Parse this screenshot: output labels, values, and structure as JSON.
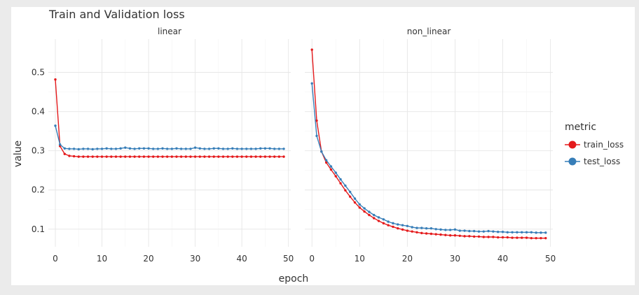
{
  "chart_data": {
    "type": "line",
    "title": "Train and Validation loss",
    "xlabel": "epoch",
    "ylabel": "value",
    "xlim": [
      -1.5,
      50.5
    ],
    "ylim": [
      0.055,
      0.585
    ],
    "x_ticks": [
      0,
      10,
      20,
      30,
      40,
      50
    ],
    "y_ticks": [
      0.1,
      0.2,
      0.3,
      0.4,
      0.5
    ],
    "grid": true,
    "legend": {
      "title": "metric",
      "placement": "right",
      "entries": [
        {
          "name": "train_loss",
          "color": "#e41a1c"
        },
        {
          "name": "test_loss",
          "color": "#377eb8"
        }
      ]
    },
    "facets": [
      {
        "label": "linear",
        "x": [
          0,
          1,
          2,
          3,
          4,
          5,
          6,
          7,
          8,
          9,
          10,
          11,
          12,
          13,
          14,
          15,
          16,
          17,
          18,
          19,
          20,
          21,
          22,
          23,
          24,
          25,
          26,
          27,
          28,
          29,
          30,
          31,
          32,
          33,
          34,
          35,
          36,
          37,
          38,
          39,
          40,
          41,
          42,
          43,
          44,
          45,
          46,
          47,
          48,
          49
        ],
        "series": [
          {
            "name": "train_loss",
            "values": [
              0.482,
              0.312,
              0.292,
              0.287,
              0.286,
              0.285,
              0.285,
              0.285,
              0.285,
              0.285,
              0.285,
              0.285,
              0.285,
              0.285,
              0.285,
              0.285,
              0.285,
              0.285,
              0.285,
              0.285,
              0.285,
              0.285,
              0.285,
              0.285,
              0.285,
              0.285,
              0.285,
              0.285,
              0.285,
              0.285,
              0.285,
              0.285,
              0.285,
              0.285,
              0.285,
              0.285,
              0.285,
              0.285,
              0.285,
              0.285,
              0.285,
              0.285,
              0.285,
              0.285,
              0.285,
              0.285,
              0.285,
              0.285,
              0.285,
              0.285
            ]
          },
          {
            "name": "test_loss",
            "values": [
              0.364,
              0.316,
              0.306,
              0.305,
              0.305,
              0.304,
              0.305,
              0.305,
              0.304,
              0.305,
              0.305,
              0.306,
              0.305,
              0.305,
              0.306,
              0.308,
              0.306,
              0.305,
              0.306,
              0.306,
              0.306,
              0.305,
              0.305,
              0.306,
              0.305,
              0.305,
              0.306,
              0.305,
              0.305,
              0.305,
              0.308,
              0.306,
              0.305,
              0.305,
              0.306,
              0.306,
              0.305,
              0.305,
              0.306,
              0.305,
              0.305,
              0.305,
              0.305,
              0.305,
              0.306,
              0.306,
              0.306,
              0.305,
              0.305,
              0.305
            ]
          }
        ]
      },
      {
        "label": "non_linear",
        "x": [
          0,
          1,
          2,
          3,
          4,
          5,
          6,
          7,
          8,
          9,
          10,
          11,
          12,
          13,
          14,
          15,
          16,
          17,
          18,
          19,
          20,
          21,
          22,
          23,
          24,
          25,
          26,
          27,
          28,
          29,
          30,
          31,
          32,
          33,
          34,
          35,
          36,
          37,
          38,
          39,
          40,
          41,
          42,
          43,
          44,
          45,
          46,
          47,
          48,
          49
        ],
        "series": [
          {
            "name": "train_loss",
            "values": [
              0.558,
              0.377,
              0.298,
              0.27,
              0.252,
              0.235,
              0.217,
              0.199,
              0.183,
              0.168,
              0.155,
              0.145,
              0.136,
              0.128,
              0.121,
              0.115,
              0.11,
              0.106,
              0.102,
              0.099,
              0.096,
              0.094,
              0.092,
              0.09,
              0.089,
              0.088,
              0.087,
              0.086,
              0.085,
              0.084,
              0.084,
              0.083,
              0.082,
              0.082,
              0.081,
              0.081,
              0.08,
              0.08,
              0.08,
              0.079,
              0.079,
              0.079,
              0.078,
              0.078,
              0.078,
              0.078,
              0.077,
              0.077,
              0.077,
              0.077
            ]
          },
          {
            "name": "test_loss",
            "values": [
              0.472,
              0.338,
              0.298,
              0.276,
              0.26,
              0.244,
              0.227,
              0.211,
              0.195,
              0.178,
              0.163,
              0.153,
              0.144,
              0.136,
              0.13,
              0.125,
              0.119,
              0.115,
              0.112,
              0.11,
              0.108,
              0.105,
              0.103,
              0.103,
              0.102,
              0.102,
              0.1,
              0.099,
              0.098,
              0.098,
              0.099,
              0.096,
              0.096,
              0.095,
              0.095,
              0.094,
              0.094,
              0.095,
              0.094,
              0.093,
              0.093,
              0.092,
              0.092,
              0.092,
              0.092,
              0.092,
              0.092,
              0.091,
              0.091,
              0.091
            ]
          }
        ]
      }
    ]
  }
}
